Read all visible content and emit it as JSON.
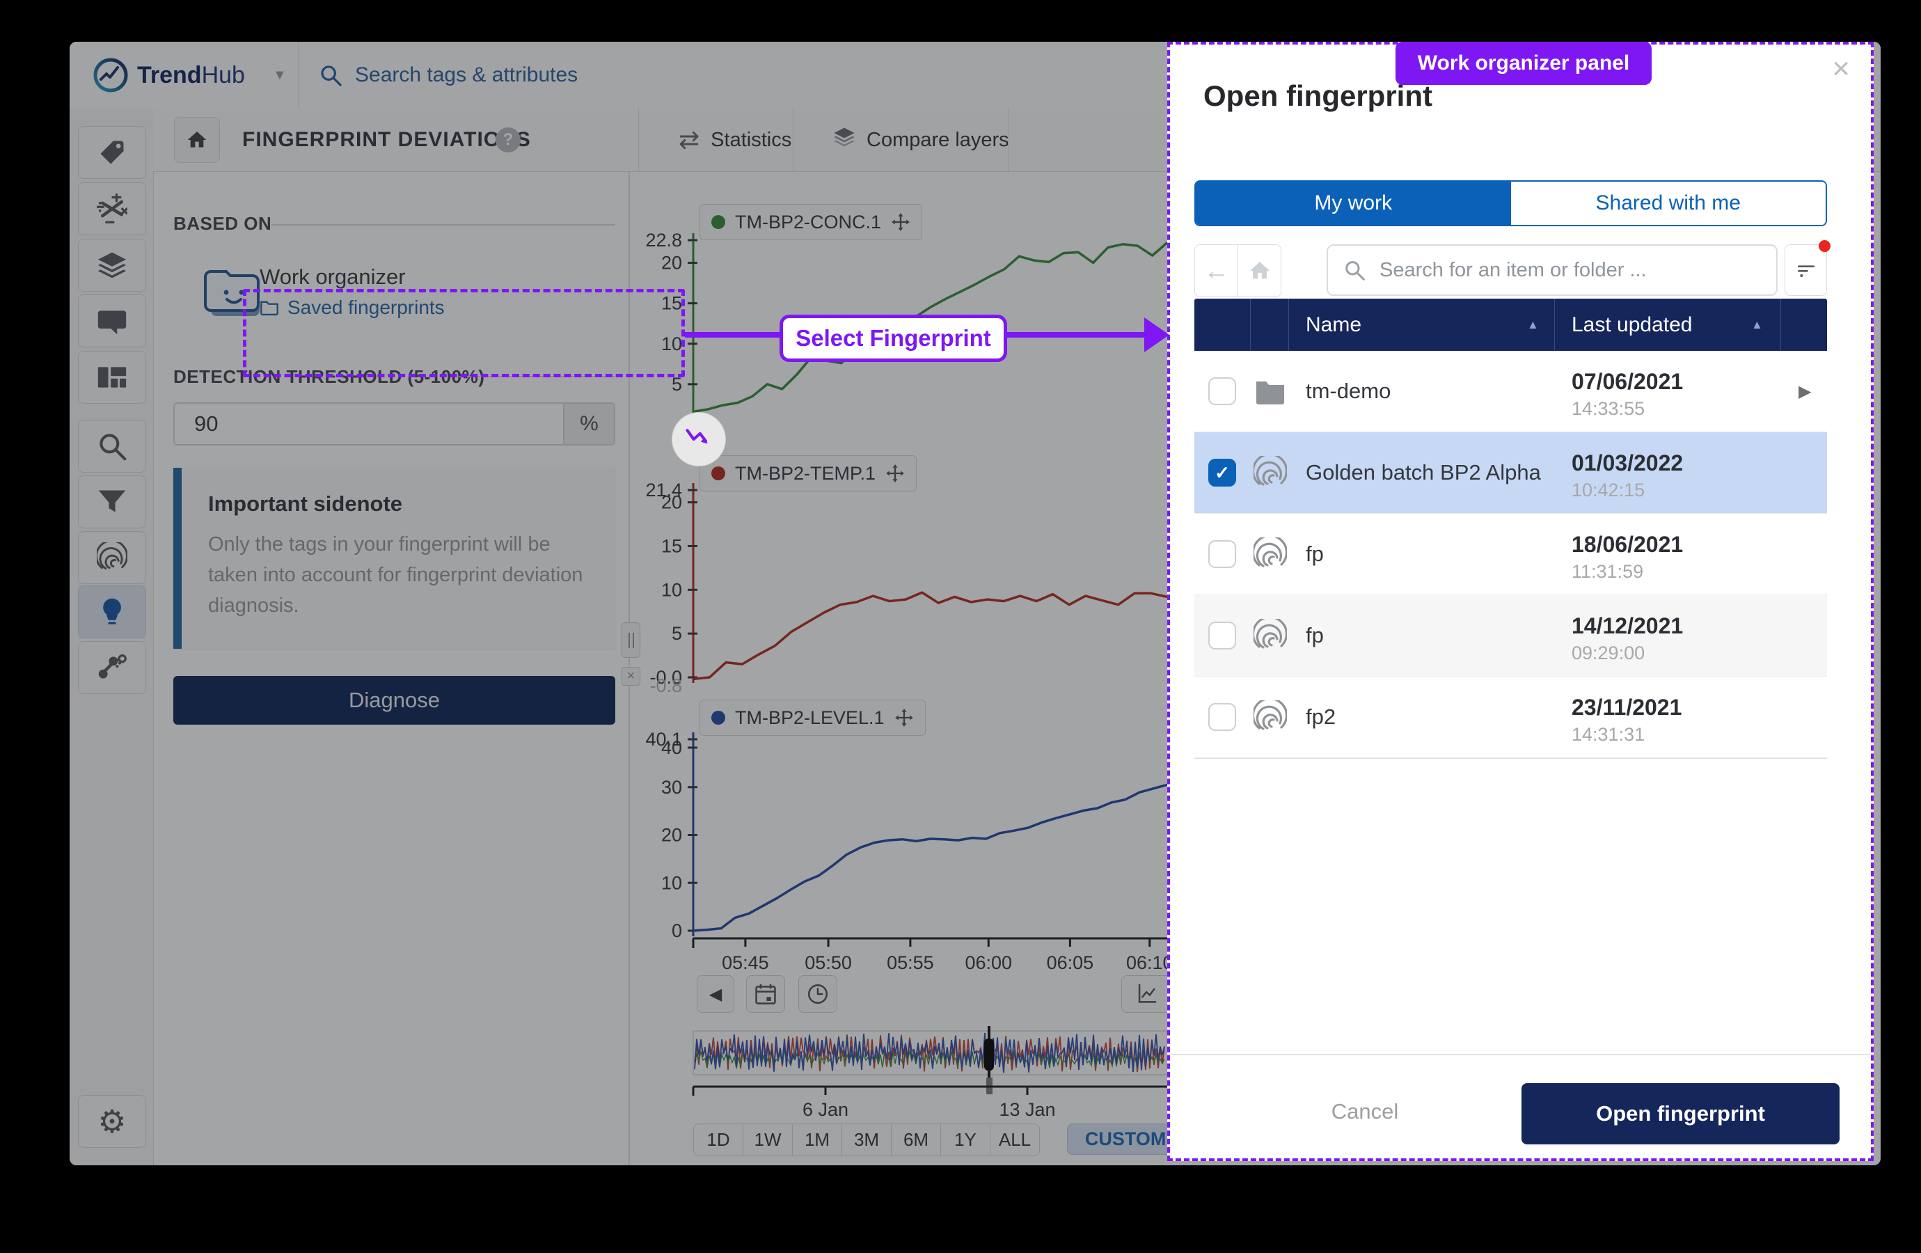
{
  "topbar": {
    "brand_bold": "Trend",
    "brand_light": "Hub",
    "search_placeholder": "Search tags & attributes"
  },
  "sidebar": {
    "icons": [
      "tag-icon",
      "calculation-icon",
      "layers-icon",
      "comment-icon",
      "dashboard-icon",
      "search-icon",
      "funnel-icon",
      "fingerprint-icon",
      "lightbulb-icon",
      "nodes-icon",
      "gear-icon"
    ],
    "active_icon": "lightbulb-icon"
  },
  "header": {
    "title": "FINGERPRINT DEVIATIONS",
    "help_glyph": "?",
    "tabs": [
      {
        "label": "Statistics"
      },
      {
        "label": "Compare layers"
      }
    ]
  },
  "panel": {
    "based_on_label": "BASED ON",
    "work_organizer_title": "Work organizer",
    "work_organizer_link": "Saved fingerprints",
    "threshold_label": "DETECTION THRESHOLD (5-100%)",
    "threshold_value": "90",
    "threshold_unit": "%",
    "sidenote_title": "Important sidenote",
    "sidenote_text": "Only the tags in your fingerprint will be taken into account for fingerprint deviation diagnosis.",
    "diagnose_label": "Diagnose"
  },
  "annotations": {
    "panel_tag": "Work organizer panel",
    "select_fingerprint": "Select Fingerprint",
    "accent": "#7e17f3"
  },
  "chart_data": [
    {
      "type": "line",
      "name": "TM-BP2-CONC.1",
      "color": "#3f8f44",
      "y_ticks": [
        "22.8",
        "20",
        "15",
        "10",
        "5"
      ],
      "ylim": [
        0,
        22.8
      ],
      "values": [
        1.6,
        1.9,
        2.4,
        2.7,
        3.5,
        5.0,
        4.4,
        6.2,
        8.4,
        7.9,
        7.6,
        9.5,
        10.7,
        10.9,
        11.9,
        13.3,
        14.5,
        15.5,
        16.4,
        17.3,
        18.3,
        19.2,
        20.8,
        20.3,
        20.1,
        21.2,
        21.3,
        20.0,
        21.9,
        22.3,
        22.1,
        20.9,
        22.5
      ]
    },
    {
      "type": "line",
      "name": "TM-BP2-TEMP.1",
      "color": "#b63527",
      "y_ticks": [
        "21.4",
        "20",
        "15",
        "10",
        "5",
        "-0.0",
        "-0.8"
      ],
      "ylim": [
        0,
        21.4
      ],
      "values": [
        -0.2,
        0.0,
        1.7,
        1.5,
        2.6,
        3.6,
        5.2,
        6.3,
        7.4,
        8.3,
        8.6,
        9.3,
        8.7,
        8.9,
        9.7,
        8.5,
        9.2,
        8.6,
        8.9,
        8.7,
        9.3,
        8.7,
        9.5,
        8.3,
        9.3,
        8.8,
        8.3,
        9.6,
        9.6,
        9.2
      ]
    },
    {
      "type": "line",
      "name": "TM-BP2-LEVEL.1",
      "color": "#2d50a7",
      "y_ticks": [
        "40.1",
        "40",
        "30",
        "20",
        "10",
        "0"
      ],
      "ylim": [
        0,
        40
      ],
      "x_ticks": [
        "05:45",
        "05:50",
        "05:55",
        "06:00",
        "06:05",
        "06:10"
      ],
      "values": [
        0.0,
        0.2,
        0.5,
        2.7,
        3.6,
        5.2,
        6.8,
        8.6,
        10.3,
        11.5,
        13.6,
        15.9,
        17.4,
        18.4,
        18.9,
        19.1,
        18.7,
        19.2,
        19.1,
        18.9,
        19.4,
        19.2,
        20.4,
        20.9,
        21.5,
        22.6,
        23.5,
        24.3,
        25.1,
        25.6,
        26.8,
        27.4,
        28.9,
        29.7,
        30.5
      ]
    }
  ],
  "timebar": {
    "range_buttons": [
      "1D",
      "1W",
      "1M",
      "3M",
      "6M",
      "1Y",
      "ALL"
    ],
    "custom_label": "CUSTOM",
    "axis_labels": [
      "6 Jan",
      "13 Jan"
    ]
  },
  "modal": {
    "title": "Open fingerprint",
    "tabs": {
      "active": "My work",
      "inactive": "Shared with me"
    },
    "search_placeholder": "Search for an item or folder ...",
    "table": {
      "columns": [
        "Name",
        "Last updated"
      ],
      "rows": [
        {
          "name": "tm-demo",
          "icon": "folder-icon",
          "date": "07/06/2021",
          "time": "14:33:55",
          "checked": false,
          "selected": false,
          "striped": false,
          "has_chevron": true
        },
        {
          "name": "Golden batch BP2 Alpha",
          "icon": "fingerprint-icon",
          "date": "01/03/2022",
          "time": "10:42:15",
          "checked": true,
          "selected": true,
          "striped": false,
          "has_chevron": false
        },
        {
          "name": "fp",
          "icon": "fingerprint-icon",
          "date": "18/06/2021",
          "time": "11:31:59",
          "checked": false,
          "selected": false,
          "striped": false,
          "has_chevron": false
        },
        {
          "name": "fp",
          "icon": "fingerprint-icon",
          "date": "14/12/2021",
          "time": "09:29:00",
          "checked": false,
          "selected": false,
          "striped": true,
          "has_chevron": false
        },
        {
          "name": "fp2",
          "icon": "fingerprint-icon",
          "date": "23/11/2021",
          "time": "14:31:31",
          "checked": false,
          "selected": false,
          "striped": false,
          "has_chevron": false
        }
      ]
    },
    "footer": {
      "cancel": "Cancel",
      "confirm": "Open fingerprint"
    }
  },
  "glyphs": {
    "caret_down": "▼",
    "caret_up": "▲",
    "sort": "▲",
    "chevron_right": "▶",
    "chevron_left": "◀",
    "close": "×",
    "check": "✓",
    "swap": "⇄",
    "back": "←",
    "gear": "⚙",
    "help": "?",
    "collapse": "×",
    "grip": "‖"
  }
}
